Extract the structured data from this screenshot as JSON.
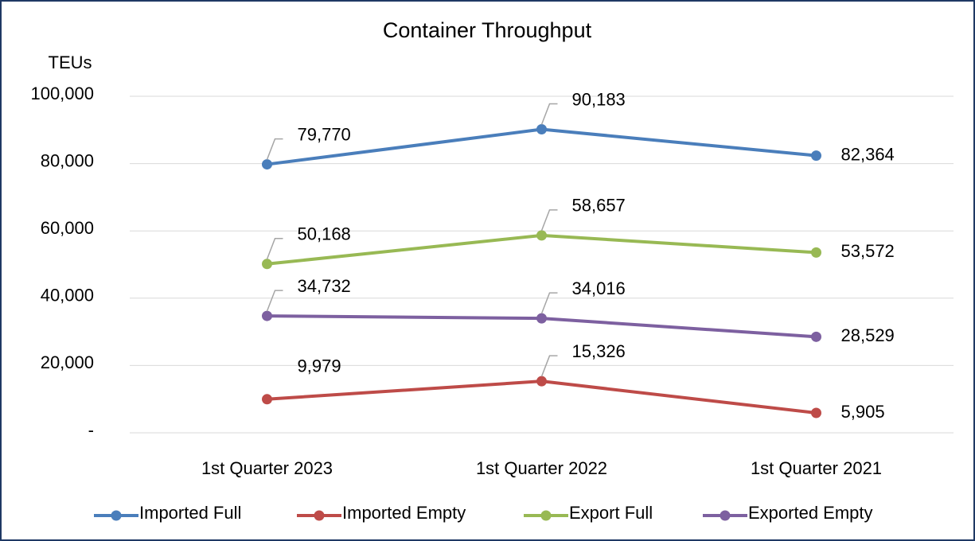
{
  "chart_data": {
    "type": "line",
    "title": "Container Throughput",
    "y_label": "TEUs",
    "categories": [
      "1st  Quarter 2023",
      "1st  Quarter 2022",
      "1st  Quarter 2021"
    ],
    "series": [
      {
        "name": "Imported Full",
        "color": "#4a7ebb",
        "values": [
          79770,
          90183,
          82364
        ],
        "value_labels": [
          "79,770",
          "90,183",
          "82,364"
        ]
      },
      {
        "name": "Imported Empty",
        "color": "#be4b48",
        "values": [
          9979,
          15326,
          5905
        ],
        "value_labels": [
          "9,979",
          "15,326",
          "5,905"
        ]
      },
      {
        "name": "Export Full",
        "color": "#98b954",
        "values": [
          50168,
          58657,
          53572
        ],
        "value_labels": [
          "50,168",
          "58,657",
          "53,572"
        ]
      },
      {
        "name": "Exported Empty",
        "color": "#7d60a0",
        "values": [
          34732,
          34016,
          28529
        ],
        "value_labels": [
          "34,732",
          "34,016",
          "28,529"
        ]
      }
    ],
    "ylim": [
      0,
      100000
    ],
    "yticks": [
      {
        "value": 0,
        "label": "-"
      },
      {
        "value": 20000,
        "label": "20,000"
      },
      {
        "value": 40000,
        "label": "40,000"
      },
      {
        "value": 60000,
        "label": "60,000"
      },
      {
        "value": 80000,
        "label": "80,000"
      },
      {
        "value": 100000,
        "label": "100,000"
      }
    ],
    "grid": true,
    "legend": "bottom"
  }
}
